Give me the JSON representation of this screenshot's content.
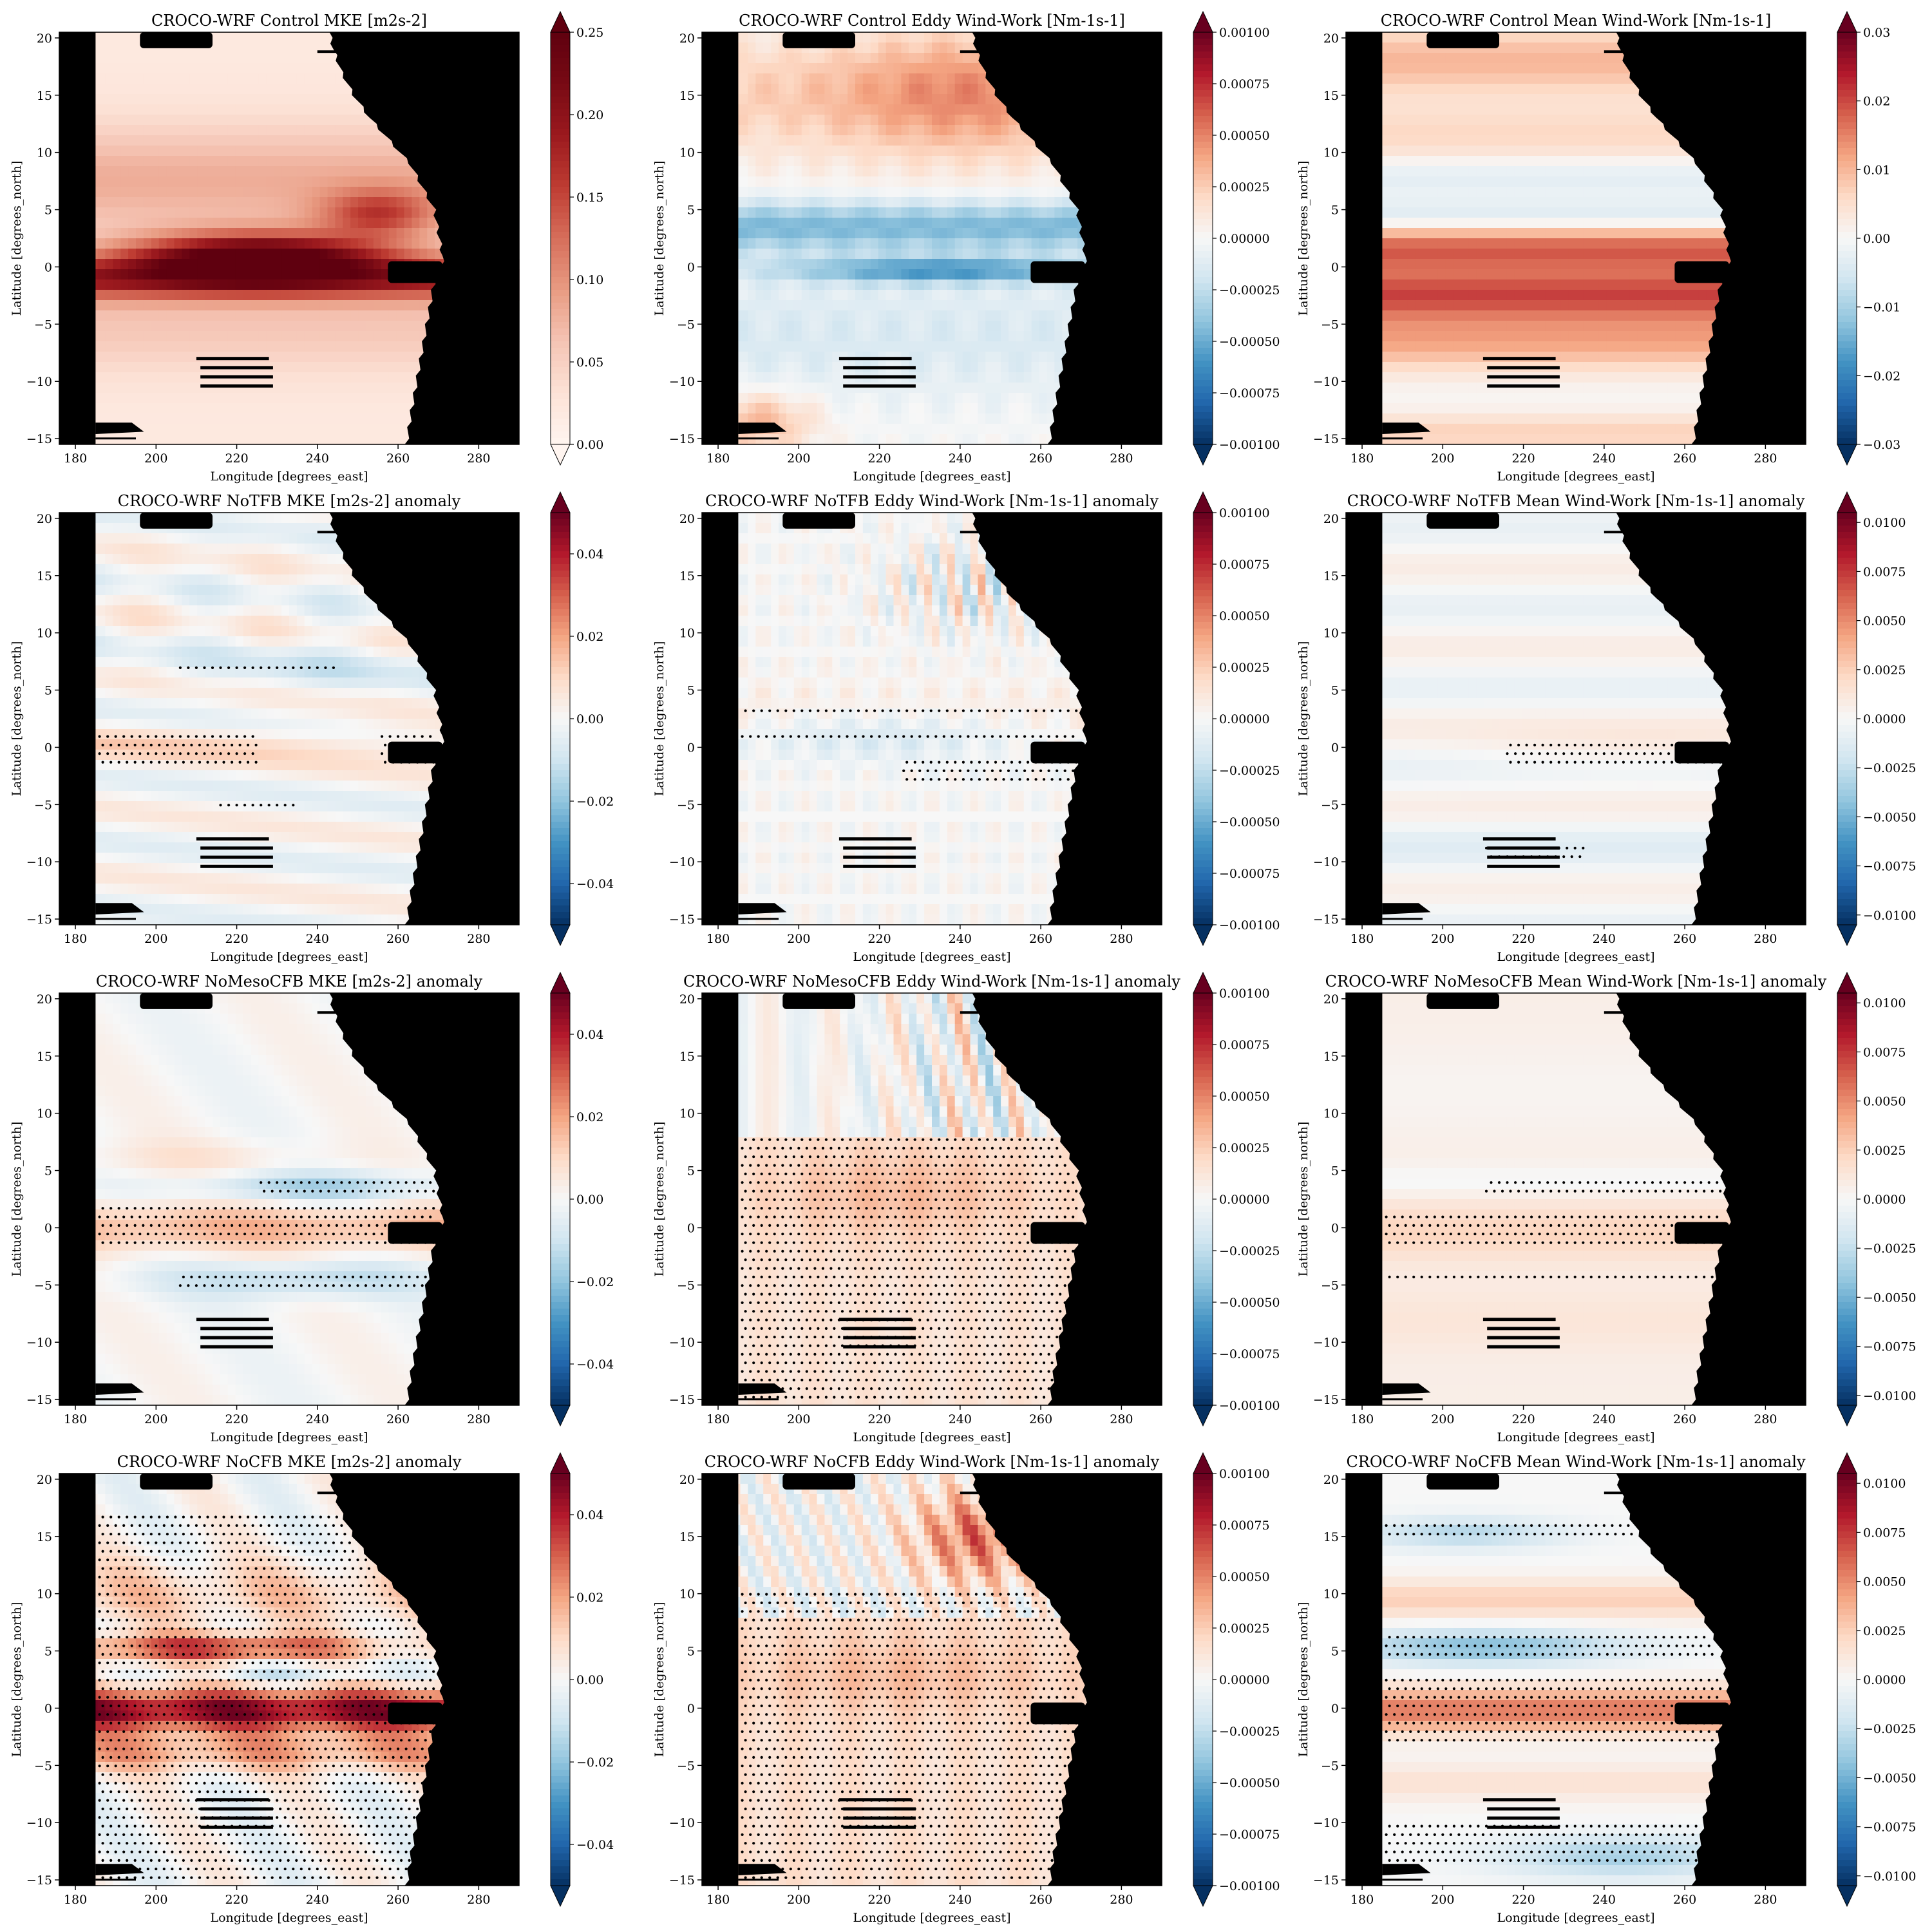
{
  "figure": {
    "xlabel": "Longitude [degrees_east]",
    "ylabel": "Latitude [degrees_north]"
  },
  "chart_data": [
    {
      "type": "heatmap",
      "title": "CROCO-WRF Control MKE [m2s-2]",
      "xlim": [
        176,
        290
      ],
      "ylim": [
        -15.5,
        20.5
      ],
      "xticks": [
        180,
        200,
        220,
        240,
        260,
        280
      ],
      "yticks": [
        20,
        15,
        10,
        5,
        0,
        -5,
        -10,
        -15
      ],
      "colormap": "Reds",
      "clim": [
        0.0,
        0.25
      ],
      "cbar_ticks": [
        "0.25",
        "0.20",
        "0.15",
        "0.10",
        "0.05",
        "0.00"
      ],
      "cbar_extend": "both",
      "stippling": false
    },
    {
      "type": "heatmap",
      "title": "CROCO-WRF Control Eddy Wind-Work [Nm-1s-1]",
      "xlim": [
        176,
        290
      ],
      "ylim": [
        -15.5,
        20.5
      ],
      "xticks": [
        180,
        200,
        220,
        240,
        260,
        280
      ],
      "yticks": [
        20,
        15,
        10,
        5,
        0,
        -5,
        -10,
        -15
      ],
      "colormap": "RdBu_r",
      "clim": [
        -0.001,
        0.001
      ],
      "cbar_ticks": [
        "0.00100",
        "0.00075",
        "0.00050",
        "0.00025",
        "0.00000",
        "−0.00025",
        "−0.00050",
        "−0.00075",
        "−0.00100"
      ],
      "cbar_extend": "both",
      "stippling": false
    },
    {
      "type": "heatmap",
      "title": "CROCO-WRF Control Mean Wind-Work [Nm-1s-1]",
      "xlim": [
        176,
        290
      ],
      "ylim": [
        -15.5,
        20.5
      ],
      "xticks": [
        180,
        200,
        220,
        240,
        260,
        280
      ],
      "yticks": [
        20,
        15,
        10,
        5,
        0,
        -5,
        -10,
        -15
      ],
      "colormap": "RdBu_r",
      "clim": [
        -0.03,
        0.03
      ],
      "cbar_ticks": [
        "0.03",
        "0.02",
        "0.01",
        "0.00",
        "−0.01",
        "−0.02",
        "−0.03"
      ],
      "cbar_extend": "both",
      "stippling": false
    },
    {
      "type": "heatmap",
      "title": "CROCO-WRF NoTFB MKE [m2s-2] anomaly",
      "xlim": [
        176,
        290
      ],
      "ylim": [
        -15.5,
        20.5
      ],
      "xticks": [
        180,
        200,
        220,
        240,
        260,
        280
      ],
      "yticks": [
        20,
        15,
        10,
        5,
        0,
        -5,
        -10,
        -15
      ],
      "colormap": "RdBu_r",
      "clim": [
        -0.05,
        0.05
      ],
      "cbar_ticks": [
        "0.04",
        "0.02",
        "0.00",
        "−0.02",
        "−0.04"
      ],
      "cbar_extend": "both",
      "stippling": true
    },
    {
      "type": "heatmap",
      "title": "CROCO-WRF NoTFB Eddy Wind-Work [Nm-1s-1] anomaly",
      "xlim": [
        176,
        290
      ],
      "ylim": [
        -15.5,
        20.5
      ],
      "xticks": [
        180,
        200,
        220,
        240,
        260,
        280
      ],
      "yticks": [
        20,
        15,
        10,
        5,
        0,
        -5,
        -10,
        -15
      ],
      "colormap": "RdBu_r",
      "clim": [
        -0.001,
        0.001
      ],
      "cbar_ticks": [
        "0.00100",
        "0.00075",
        "0.00050",
        "0.00025",
        "0.00000",
        "−0.00025",
        "−0.00050",
        "−0.00075",
        "−0.00100"
      ],
      "cbar_extend": "both",
      "stippling": true
    },
    {
      "type": "heatmap",
      "title": "CROCO-WRF NoTFB Mean Wind-Work [Nm-1s-1] anomaly",
      "xlim": [
        176,
        290
      ],
      "ylim": [
        -15.5,
        20.5
      ],
      "xticks": [
        180,
        200,
        220,
        240,
        260,
        280
      ],
      "yticks": [
        20,
        15,
        10,
        5,
        0,
        -5,
        -10,
        -15
      ],
      "colormap": "RdBu_r",
      "clim": [
        -0.0105,
        0.0105
      ],
      "cbar_ticks": [
        "0.0100",
        "0.0075",
        "0.0050",
        "0.0025",
        "0.0000",
        "−0.0025",
        "−0.0050",
        "−0.0075",
        "−0.0100"
      ],
      "cbar_extend": "both",
      "stippling": true
    },
    {
      "type": "heatmap",
      "title": "CROCO-WRF NoMesoCFB MKE [m2s-2] anomaly",
      "xlim": [
        176,
        290
      ],
      "ylim": [
        -15.5,
        20.5
      ],
      "xticks": [
        180,
        200,
        220,
        240,
        260,
        280
      ],
      "yticks": [
        20,
        15,
        10,
        5,
        0,
        -5,
        -10,
        -15
      ],
      "colormap": "RdBu_r",
      "clim": [
        -0.05,
        0.05
      ],
      "cbar_ticks": [
        "0.04",
        "0.02",
        "0.00",
        "−0.02",
        "−0.04"
      ],
      "cbar_extend": "both",
      "stippling": true
    },
    {
      "type": "heatmap",
      "title": "CROCO-WRF NoMesoCFB Eddy Wind-Work [Nm-1s-1] anomaly",
      "xlim": [
        176,
        290
      ],
      "ylim": [
        -15.5,
        20.5
      ],
      "xticks": [
        180,
        200,
        220,
        240,
        260,
        280
      ],
      "yticks": [
        20,
        15,
        10,
        5,
        0,
        -5,
        -10,
        -15
      ],
      "colormap": "RdBu_r",
      "clim": [
        -0.001,
        0.001
      ],
      "cbar_ticks": [
        "0.00100",
        "0.00075",
        "0.00050",
        "0.00025",
        "0.00000",
        "−0.00025",
        "−0.00050",
        "−0.00075",
        "−0.00100"
      ],
      "cbar_extend": "both",
      "stippling": true
    },
    {
      "type": "heatmap",
      "title": "CROCO-WRF NoMesoCFB Mean Wind-Work [Nm-1s-1] anomaly",
      "xlim": [
        176,
        290
      ],
      "ylim": [
        -15.5,
        20.5
      ],
      "xticks": [
        180,
        200,
        220,
        240,
        260,
        280
      ],
      "yticks": [
        20,
        15,
        10,
        5,
        0,
        -5,
        -10,
        -15
      ],
      "colormap": "RdBu_r",
      "clim": [
        -0.0105,
        0.0105
      ],
      "cbar_ticks": [
        "0.0100",
        "0.0075",
        "0.0050",
        "0.0025",
        "0.0000",
        "−0.0025",
        "−0.0050",
        "−0.0075",
        "−0.0100"
      ],
      "cbar_extend": "both",
      "stippling": true
    },
    {
      "type": "heatmap",
      "title": "CROCO-WRF NoCFB MKE [m2s-2] anomaly",
      "xlim": [
        176,
        290
      ],
      "ylim": [
        -15.5,
        20.5
      ],
      "xticks": [
        180,
        200,
        220,
        240,
        260,
        280
      ],
      "yticks": [
        20,
        15,
        10,
        5,
        0,
        -5,
        -10,
        -15
      ],
      "colormap": "RdBu_r",
      "clim": [
        -0.05,
        0.05
      ],
      "cbar_ticks": [
        "0.04",
        "0.02",
        "0.00",
        "−0.02",
        "−0.04"
      ],
      "cbar_extend": "both",
      "stippling": true
    },
    {
      "type": "heatmap",
      "title": "CROCO-WRF NoCFB Eddy Wind-Work [Nm-1s-1] anomaly",
      "xlim": [
        176,
        290
      ],
      "ylim": [
        -15.5,
        20.5
      ],
      "xticks": [
        180,
        200,
        220,
        240,
        260,
        280
      ],
      "yticks": [
        20,
        15,
        10,
        5,
        0,
        -5,
        -10,
        -15
      ],
      "colormap": "RdBu_r",
      "clim": [
        -0.001,
        0.001
      ],
      "cbar_ticks": [
        "0.00100",
        "0.00075",
        "0.00050",
        "0.00025",
        "0.00000",
        "−0.00025",
        "−0.00050",
        "−0.00075",
        "−0.00100"
      ],
      "cbar_extend": "both",
      "stippling": true
    },
    {
      "type": "heatmap",
      "title": "CROCO-WRF NoCFB Mean Wind-Work [Nm-1s-1] anomaly",
      "xlim": [
        176,
        290
      ],
      "ylim": [
        -15.5,
        20.5
      ],
      "xticks": [
        180,
        200,
        220,
        240,
        260,
        280
      ],
      "yticks": [
        20,
        15,
        10,
        5,
        0,
        -5,
        -10,
        -15
      ],
      "colormap": "RdBu_r",
      "clim": [
        -0.0105,
        0.0105
      ],
      "cbar_ticks": [
        "0.0100",
        "0.0075",
        "0.0050",
        "0.0025",
        "0.0000",
        "−0.0025",
        "−0.0050",
        "−0.0075",
        "−0.0100"
      ],
      "cbar_extend": "both",
      "stippling": true
    }
  ]
}
